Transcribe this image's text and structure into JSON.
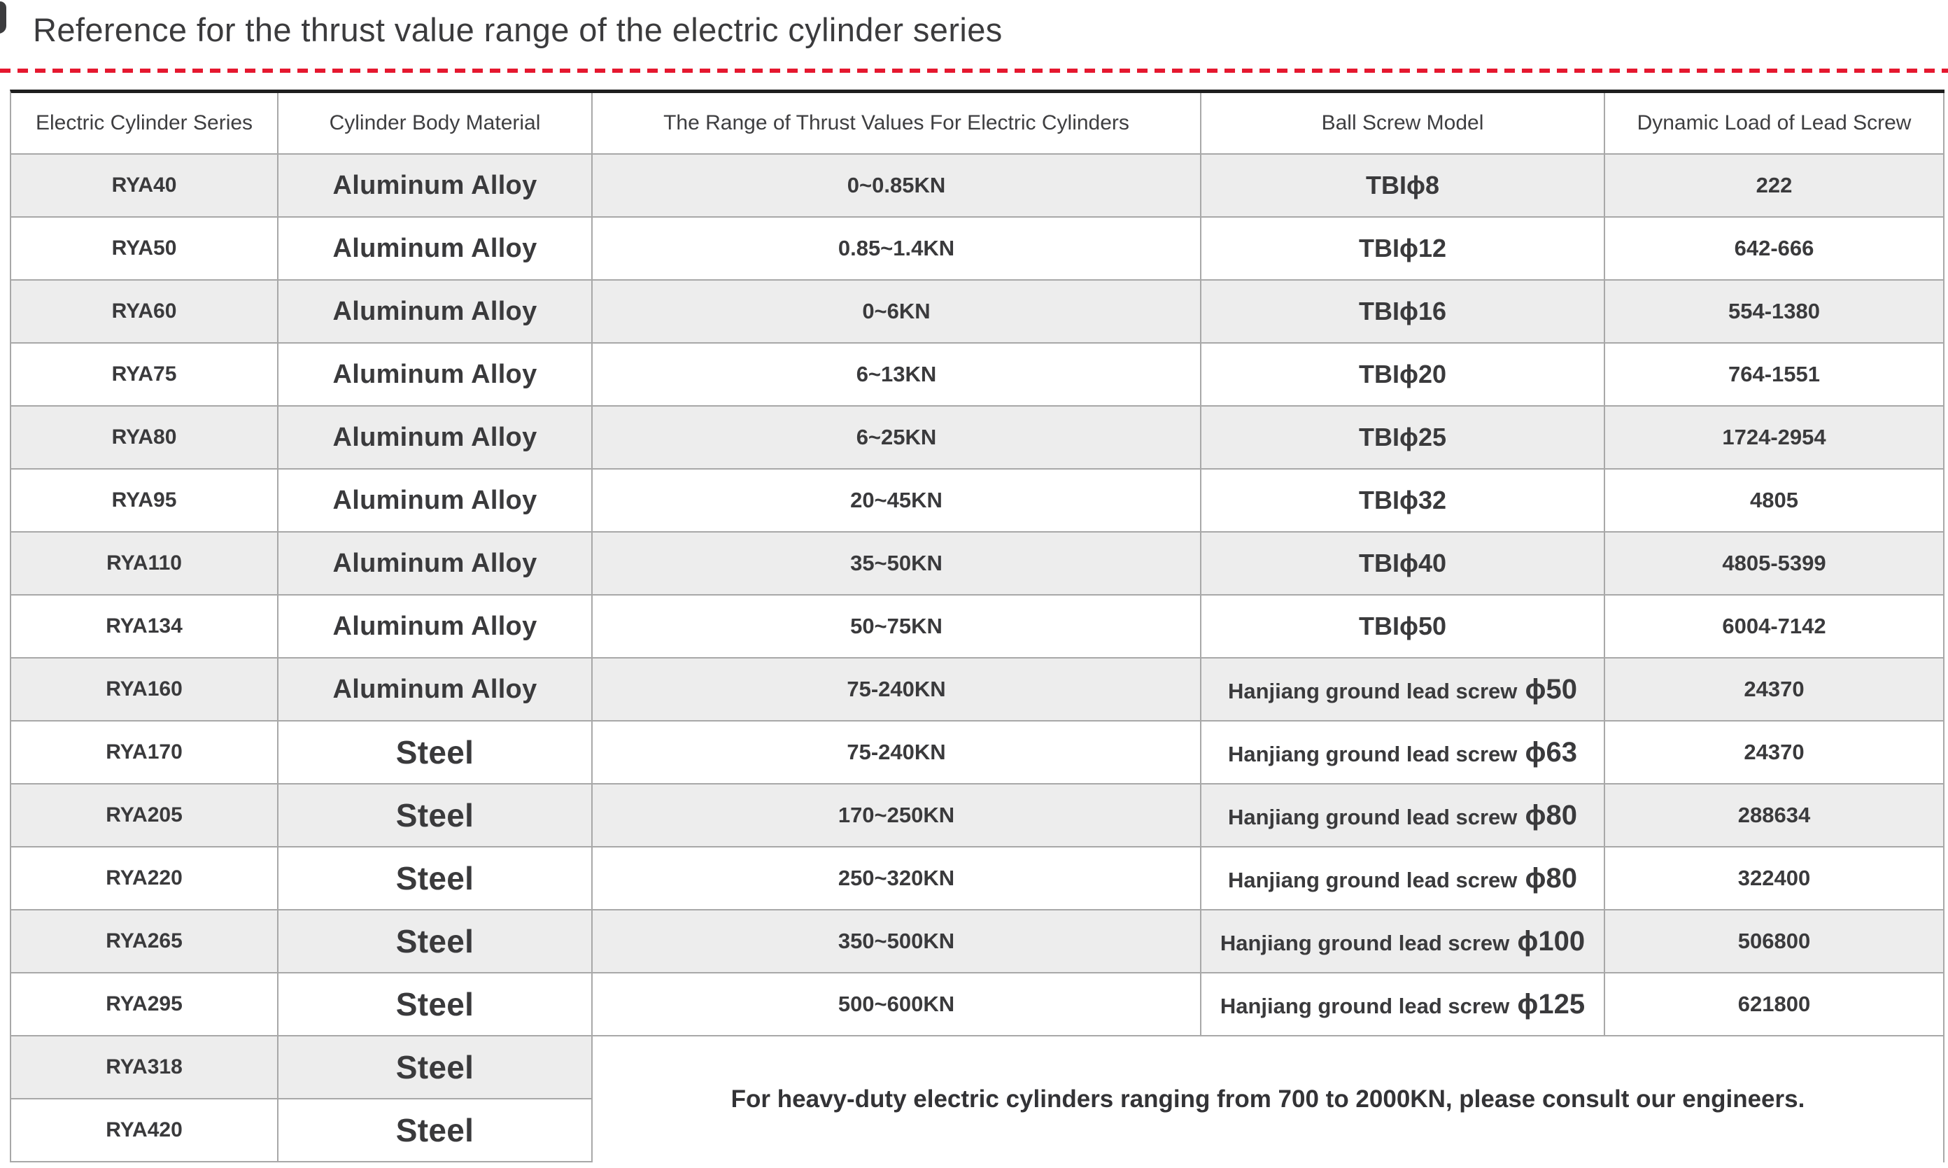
{
  "title": "Reference for the thrust value range of the electric cylinder series",
  "divider": {
    "dash_color": "#e5182f"
  },
  "table": {
    "headers": [
      "Electric Cylinder Series",
      "Cylinder Body Material",
      "The Range of Thrust Values For Electric Cylinders",
      "Ball Screw Model",
      "Dynamic Load of Lead Screw"
    ],
    "rows": [
      {
        "series": "RYA40",
        "material": "Aluminum Alloy",
        "thrust": "0~0.85KN",
        "screw": "TBIϕ8",
        "load": "222"
      },
      {
        "series": "RYA50",
        "material": "Aluminum Alloy",
        "thrust": "0.85~1.4KN",
        "screw": "TBIϕ12",
        "load": "642-666"
      },
      {
        "series": "RYA60",
        "material": "Aluminum Alloy",
        "thrust": "0~6KN",
        "screw": "TBIϕ16",
        "load": "554-1380"
      },
      {
        "series": "RYA75",
        "material": "Aluminum Alloy",
        "thrust": "6~13KN",
        "screw": "TBIϕ20",
        "load": "764-1551"
      },
      {
        "series": "RYA80",
        "material": "Aluminum Alloy",
        "thrust": "6~25KN",
        "screw": "TBIϕ25",
        "load": "1724-2954"
      },
      {
        "series": "RYA95",
        "material": "Aluminum Alloy",
        "thrust": "20~45KN",
        "screw": "TBIϕ32",
        "load": "4805"
      },
      {
        "series": "RYA110",
        "material": "Aluminum Alloy",
        "thrust": "35~50KN",
        "screw": "TBIϕ40",
        "load": "4805-5399"
      },
      {
        "series": "RYA134",
        "material": "Aluminum Alloy",
        "thrust": "50~75KN",
        "screw": "TBIϕ50",
        "load": "6004-7142"
      },
      {
        "series": "RYA160",
        "material": "Aluminum Alloy",
        "thrust": "75-240KN",
        "screw": "Hanjiang ground lead screw",
        "screw_phi": "ϕ50",
        "load": "24370"
      },
      {
        "series": "RYA170",
        "material": "Steel",
        "thrust": "75-240KN",
        "screw": "Hanjiang ground lead screw",
        "screw_phi": "ϕ63",
        "load": "24370"
      },
      {
        "series": "RYA205",
        "material": "Steel",
        "thrust": "170~250KN",
        "screw": "Hanjiang ground lead screw",
        "screw_phi": "ϕ80",
        "load": "288634"
      },
      {
        "series": "RYA220",
        "material": "Steel",
        "thrust": "250~320KN",
        "screw": "Hanjiang ground lead screw",
        "screw_phi": "ϕ80",
        "load": "322400"
      },
      {
        "series": "RYA265",
        "material": "Steel",
        "thrust": "350~500KN",
        "screw": "Hanjiang ground lead screw",
        "screw_phi": "ϕ100",
        "load": "506800"
      },
      {
        "series": "RYA295",
        "material": "Steel",
        "thrust": "500~600KN",
        "screw": "Hanjiang ground lead screw",
        "screw_phi": "ϕ125",
        "load": "621800"
      },
      {
        "series": "RYA318",
        "material": "Steel",
        "merged_note": true
      },
      {
        "series": "RYA420",
        "material": "Steel"
      }
    ],
    "note": "For heavy-duty electric cylinders ranging from 700 to 2000KN, please consult our engineers."
  },
  "colors": {
    "accent_red": "#e5182f",
    "row_alt_bg": "#ededed",
    "grid_border": "#a8a8a8",
    "table_top_border": "#1e1e1e",
    "text": "#3a3a3c"
  }
}
